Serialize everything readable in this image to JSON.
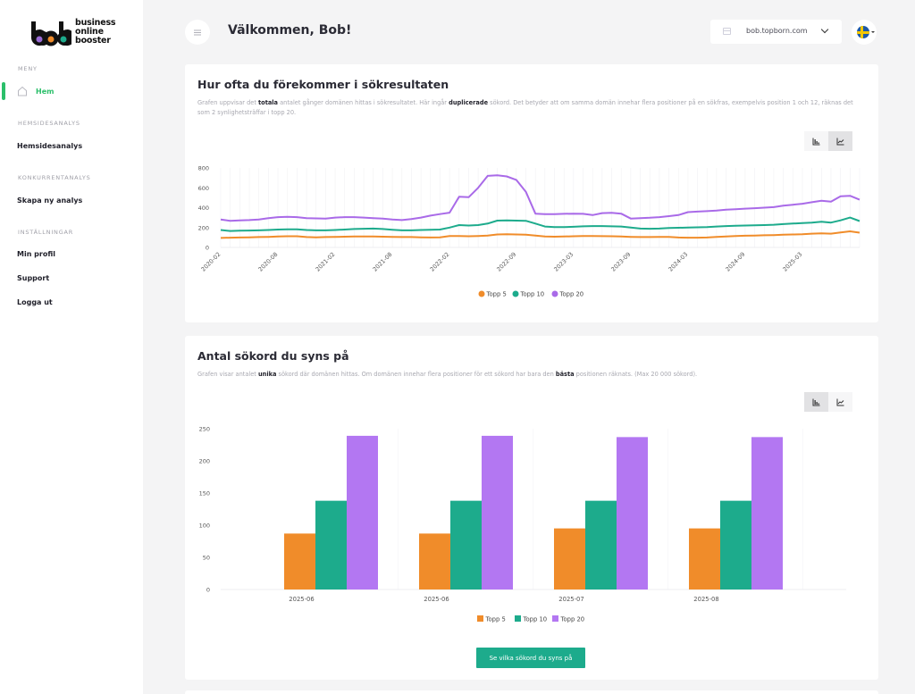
{
  "sidebar": {
    "logo": {
      "text": [
        "business",
        "online",
        "booster"
      ],
      "mark": "bob",
      "dots": [
        "#9b6bd6",
        "#f08c2a",
        "#1dab8c"
      ]
    },
    "sections": [
      {
        "label": "MENY",
        "items": [
          {
            "label": "Hem",
            "icon": "home-icon",
            "active": true
          }
        ]
      },
      {
        "label": "HEMSIDESANALYS",
        "items": [
          {
            "label": "Hemsidesanalys"
          }
        ]
      },
      {
        "label": "KONKURRENTANALYS",
        "items": [
          {
            "label": "Skapa ny analys"
          }
        ]
      },
      {
        "label": "INSTÄLLNINGAR",
        "items": [
          {
            "label": "Min profil"
          },
          {
            "label": "Support"
          },
          {
            "label": "Logga ut"
          }
        ]
      }
    ],
    "accent": "#2bbf6a"
  },
  "header": {
    "title": "Välkommen, Bob!",
    "domain": "bob.topborn.com",
    "language_flag": "sweden-flag-icon"
  },
  "card1": {
    "title": "Hur ofta du förekommer i sökresultaten",
    "desc_parts": [
      "Grafen uppvisar det ",
      "totala",
      " antalet gånger domänen hittas i sökresultatet. Här ingår ",
      "duplicerade",
      " sökord. Det betyder att om samma domän innehar flera positioner på en sökfras, exempelvis position 1 och 12, räknas det som 2 synlighetsträffar i topp 20."
    ]
  },
  "card2": {
    "title": "Antal sökord du syns på",
    "desc_parts": [
      "Grafen visar antalet ",
      "unika",
      " sökord där domänen hittas. Om domänen innehar flera positioner för ett sökord har bara den ",
      "bästa",
      " positionen räknats. (Max 20 000 sökord)."
    ],
    "cta": "Se vilka sökord du syns på"
  },
  "chart_data": [
    {
      "type": "line",
      "title": "Hur ofta du förekommer i sökresultaten",
      "ylim": [
        0,
        800
      ],
      "yticks": [
        0,
        200,
        400,
        600,
        800
      ],
      "x_start": "2020-02",
      "x_tick_labels": [
        "2020-02",
        "2020-08",
        "2021-02",
        "2021-08",
        "2022-02",
        "2022-09",
        "2023-03",
        "2023-09",
        "2024-03",
        "2024-09",
        "2025-03"
      ],
      "x_tick_index": [
        0,
        6,
        12,
        18,
        24,
        31,
        37,
        43,
        49,
        55,
        61
      ],
      "grid": "vertical",
      "legend": "bottom",
      "series": [
        {
          "name": "Topp 5",
          "color": "#f08c2a",
          "values": [
            95,
            98,
            100,
            102,
            104,
            106,
            110,
            112,
            112,
            104,
            102,
            104,
            106,
            108,
            110,
            110,
            110,
            108,
            106,
            104,
            104,
            102,
            100,
            102,
            115,
            115,
            112,
            115,
            120,
            130,
            132,
            130,
            128,
            120,
            110,
            108,
            110,
            112,
            115,
            115,
            113,
            112,
            110,
            106,
            104,
            104,
            105,
            106,
            100,
            98,
            98,
            100,
            105,
            110,
            115,
            118,
            120,
            122,
            124,
            128,
            130,
            132,
            138,
            142,
            138,
            150,
            162,
            148
          ]
        },
        {
          "name": "Topp 10",
          "color": "#1dab8c",
          "values": [
            175,
            165,
            168,
            170,
            172,
            175,
            180,
            182,
            182,
            175,
            172,
            172,
            175,
            180,
            185,
            188,
            190,
            185,
            178,
            172,
            172,
            175,
            178,
            180,
            200,
            225,
            220,
            225,
            240,
            270,
            272,
            270,
            268,
            240,
            210,
            205,
            205,
            208,
            212,
            215,
            215,
            212,
            210,
            200,
            190,
            188,
            190,
            195,
            198,
            200,
            202,
            205,
            210,
            215,
            218,
            220,
            222,
            225,
            228,
            235,
            240,
            245,
            250,
            258,
            250,
            272,
            300,
            265
          ]
        },
        {
          "name": "Topp 20",
          "color": "#a96ae8",
          "values": [
            280,
            268,
            272,
            275,
            280,
            295,
            305,
            308,
            305,
            295,
            292,
            290,
            300,
            305,
            305,
            300,
            295,
            290,
            280,
            275,
            285,
            300,
            320,
            335,
            350,
            510,
            505,
            600,
            720,
            725,
            715,
            680,
            560,
            340,
            335,
            335,
            338,
            340,
            338,
            325,
            345,
            348,
            340,
            290,
            295,
            298,
            305,
            315,
            325,
            355,
            360,
            365,
            370,
            380,
            385,
            390,
            395,
            400,
            405,
            420,
            430,
            440,
            455,
            470,
            460,
            515,
            520,
            480
          ]
        }
      ]
    },
    {
      "type": "bar",
      "title": "Antal sökord du syns på",
      "ylim": [
        0,
        250
      ],
      "yticks": [
        0,
        50,
        100,
        150,
        200,
        250
      ],
      "categories": [
        "2025-06",
        "2025-06",
        "2025-07",
        "2025-08"
      ],
      "legend": "bottom",
      "series": [
        {
          "name": "Topp 5",
          "color": "#f08c2a",
          "values": [
            87,
            87,
            95,
            95
          ]
        },
        {
          "name": "Topp 10",
          "color": "#1dab8c",
          "values": [
            138,
            138,
            138,
            138
          ]
        },
        {
          "name": "Topp 20",
          "color": "#b377f2",
          "values": [
            239,
            239,
            237,
            237
          ]
        }
      ]
    }
  ]
}
